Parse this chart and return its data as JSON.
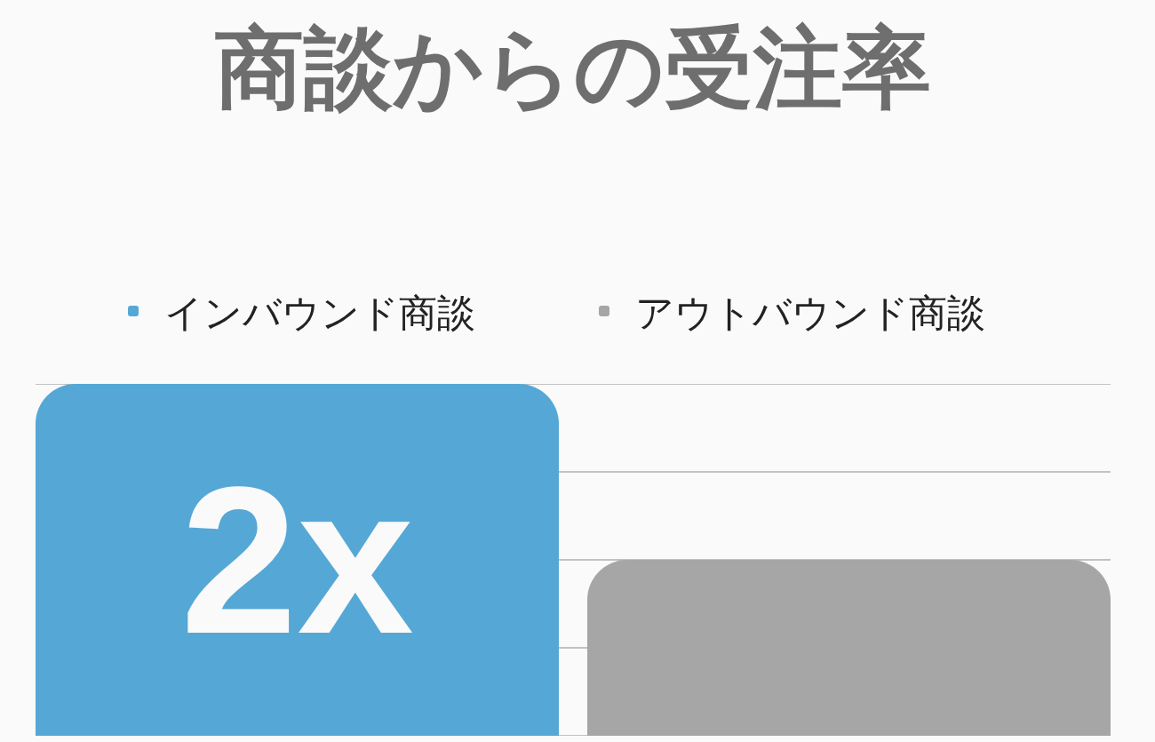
{
  "chart_data": {
    "type": "bar",
    "title": "商談からの受注率",
    "categories": [
      null
    ],
    "series": [
      {
        "name": "インバウンド商談",
        "color": "#55a8d6",
        "values": [
          2
        ],
        "value_labels": [
          "2x"
        ]
      },
      {
        "name": "アウトバウンド商談",
        "color": "#a6a6a6",
        "values": [
          1
        ]
      }
    ],
    "grid": "y",
    "legend": "top"
  }
}
